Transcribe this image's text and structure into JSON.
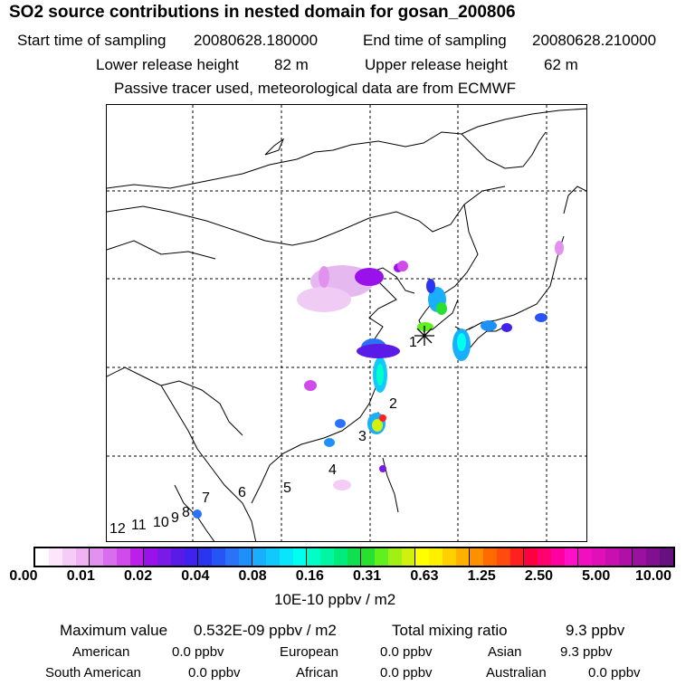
{
  "title": "SO2 source contributions in nested domain for gosan_200806",
  "sampling": {
    "start_label": "Start time of sampling",
    "start_value": "20080628.180000",
    "end_label": "End time of sampling",
    "end_value": "20080628.210000"
  },
  "release": {
    "lower_label": "Lower release height",
    "lower_value": "82 m",
    "upper_label": "Upper release height",
    "upper_value": "62 m"
  },
  "note": "Passive tracer used, meteorological data are from ECMWF",
  "map": {
    "receptor_label": "1",
    "source_labels": [
      "2",
      "3",
      "4",
      "5",
      "6",
      "7",
      "8",
      "9",
      "10",
      "11",
      "12"
    ]
  },
  "colorbar": {
    "tick_labels": [
      "0.00",
      "0.01",
      "0.02",
      "0.04",
      "0.08",
      "0.16",
      "0.31",
      "0.63",
      "1.25",
      "2.50",
      "5.00",
      "10.00"
    ],
    "units": "10E-10 ppbv / m2",
    "colors": [
      "#ffffff",
      "#fbe6fb",
      "#f5ccf6",
      "#efb2f2",
      "#e292ee",
      "#d86ded",
      "#cf4cea",
      "#bb1fe8",
      "#9a12ea",
      "#7a1ae8",
      "#5a1be8",
      "#3f22ec",
      "#2a35f0",
      "#2754f4",
      "#2a72f7",
      "#1e90fa",
      "#1aaffc",
      "#13c9fc",
      "#07e6fa",
      "#00ffee",
      "#00ffc8",
      "#00f6a0",
      "#00ec7a",
      "#10e050",
      "#28e030",
      "#60f020",
      "#a0f016",
      "#d0f00e",
      "#ffff00",
      "#fff000",
      "#ffd000",
      "#ffb000",
      "#ff9000",
      "#ff6a00",
      "#ff4a10",
      "#ff2020",
      "#ff0040",
      "#ff0070",
      "#ff00a0",
      "#ff10c8",
      "#f010c0",
      "#e010b8",
      "#c810b0",
      "#b010a8",
      "#9a10a0",
      "#801090",
      "#681080"
    ]
  },
  "stats": {
    "max_label": "Maximum value",
    "max_value": "0.532E-09 ppbv / m2",
    "total_label": "Total mixing ratio",
    "total_value": "9.3 ppbv",
    "regions": [
      {
        "name": "American",
        "value": "0.0 ppbv"
      },
      {
        "name": "European",
        "value": "0.0 ppbv"
      },
      {
        "name": "Asian",
        "value": "9.3 ppbv"
      },
      {
        "name": "South American",
        "value": "0.0 ppbv"
      },
      {
        "name": "African",
        "value": "0.0 ppbv"
      },
      {
        "name": "Australian",
        "value": "0.0 ppbv"
      }
    ]
  }
}
